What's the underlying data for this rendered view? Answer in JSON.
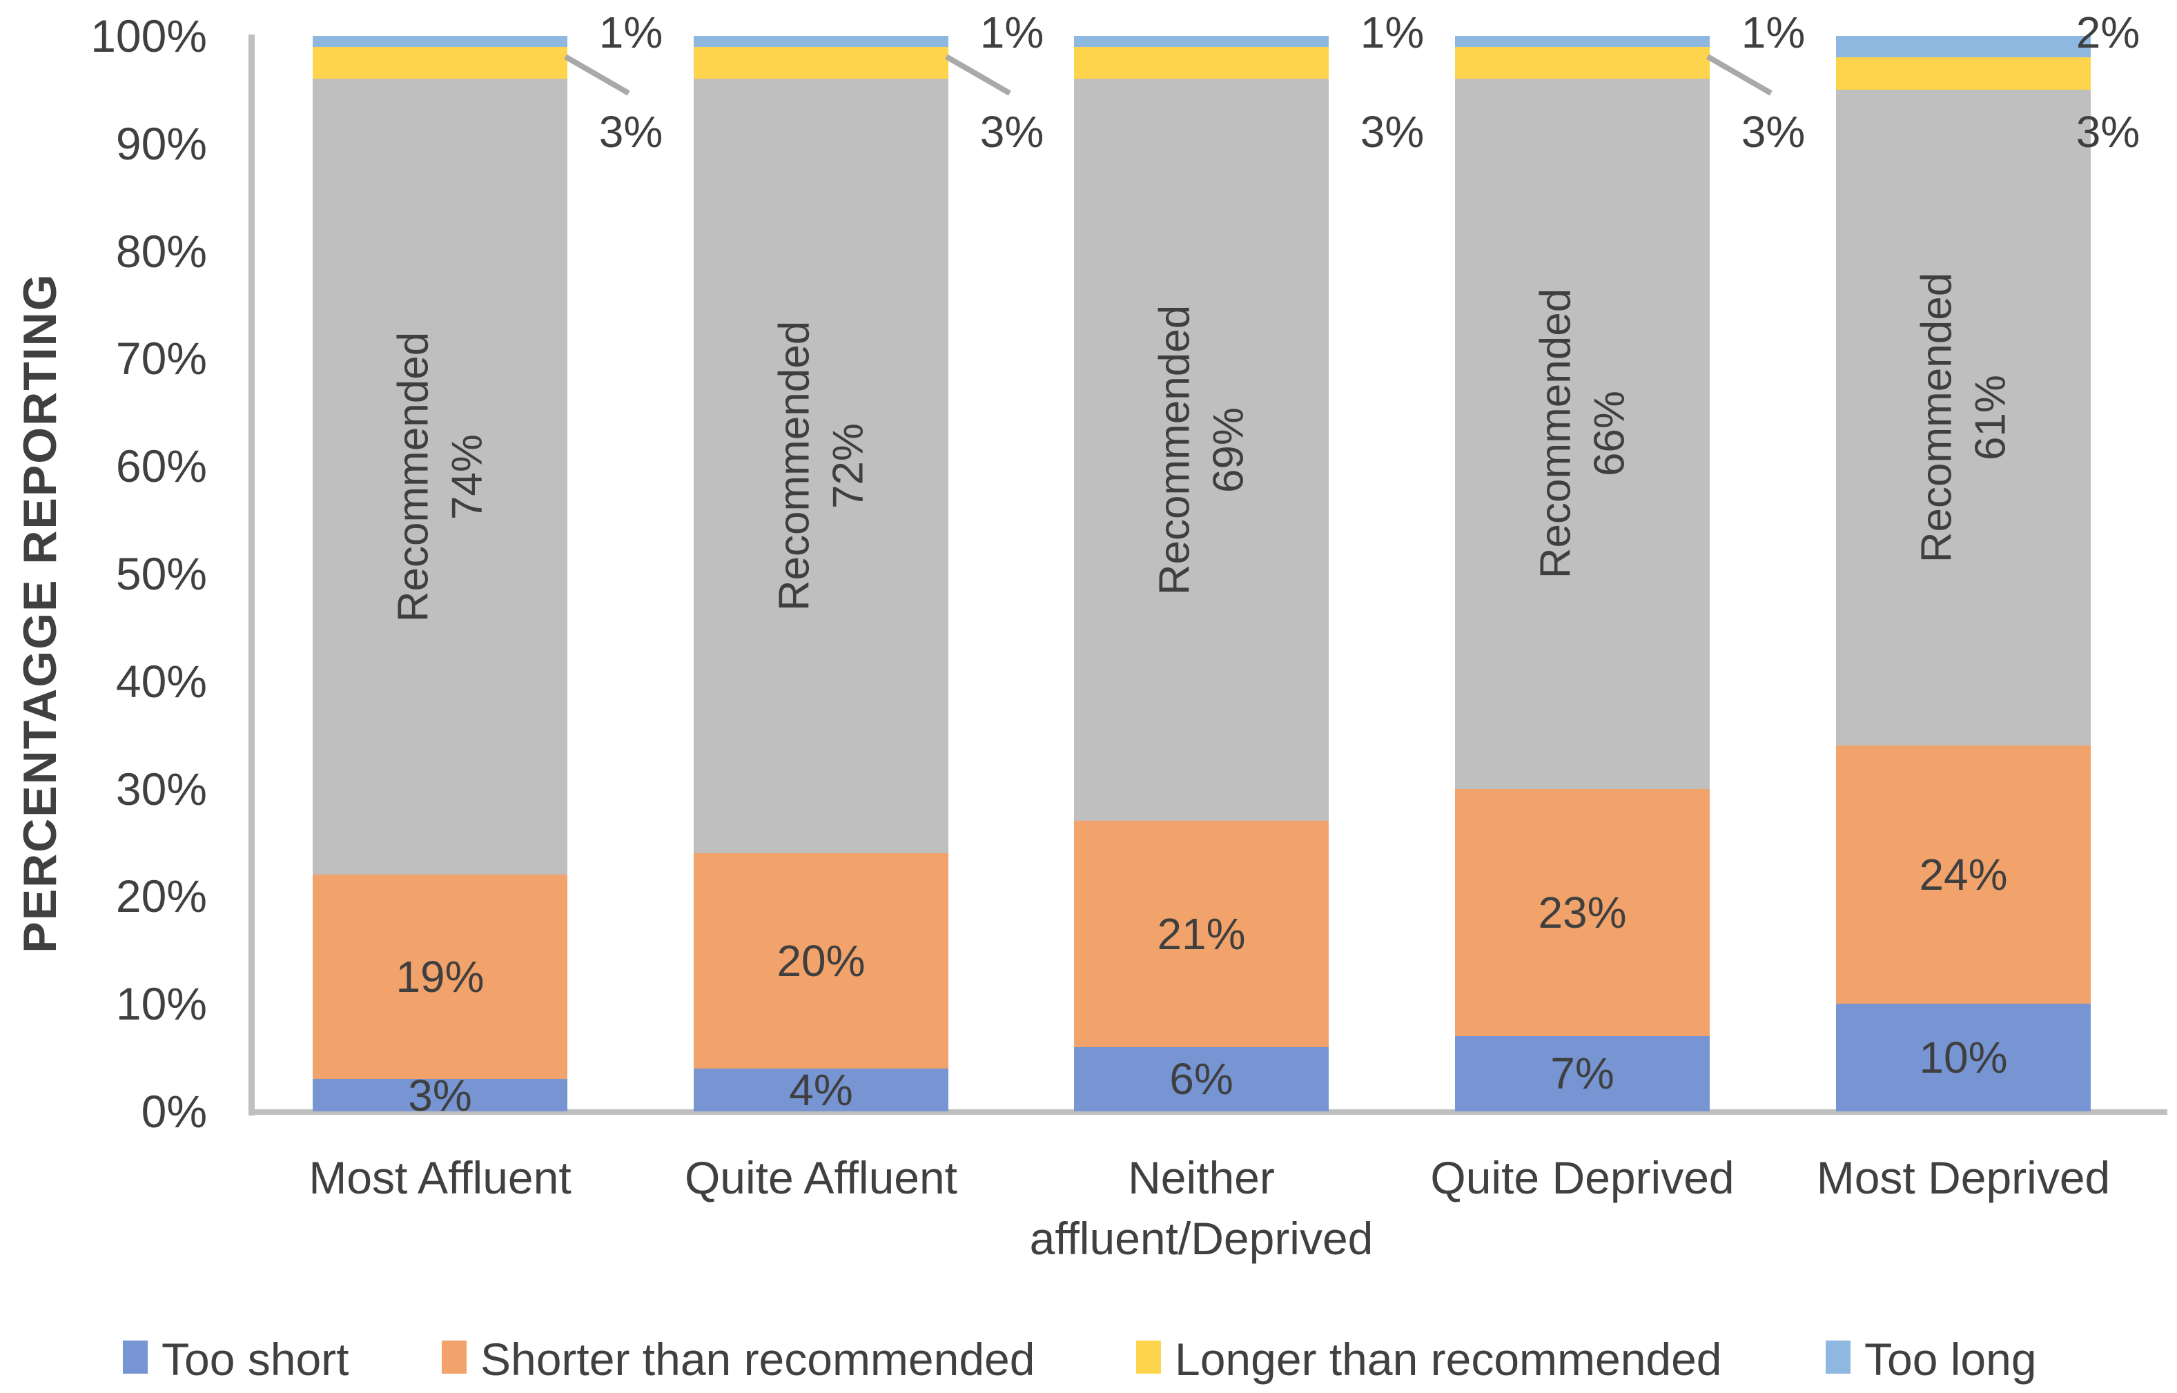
{
  "chart_data": {
    "type": "bar",
    "stacked": true,
    "title": "",
    "ylabel": "PERCENTAGGE REPORTING",
    "xlabel": "",
    "ylim": [
      0,
      100
    ],
    "yticks": [
      "0%",
      "10%",
      "20%",
      "30%",
      "40%",
      "50%",
      "60%",
      "70%",
      "80%",
      "90%",
      "100%"
    ],
    "grid": false,
    "legend_position": "bottom",
    "categories": [
      "Most Affluent",
      "Quite Affluent",
      "Neither affluent/Deprived",
      "Quite Deprived",
      "Most Deprived"
    ],
    "category_label_lines": [
      [
        "Most Affluent"
      ],
      [
        "Quite Affluent"
      ],
      [
        "Neither",
        "affluent/Deprived"
      ],
      [
        "Quite Deprived"
      ],
      [
        "Most Deprived"
      ]
    ],
    "series": [
      {
        "name": "Too short",
        "color": "#7795D2",
        "values": [
          3,
          4,
          6,
          7,
          10
        ],
        "label_style": "inside"
      },
      {
        "name": "Shorter than recommended",
        "color": "#F1A36B",
        "values": [
          19,
          20,
          21,
          23,
          24
        ],
        "label_style": "inside"
      },
      {
        "name": "Recommended",
        "color": "#BFBFBF",
        "values": [
          74,
          72,
          69,
          66,
          61
        ],
        "label_style": "inside-rotated",
        "in_legend": false
      },
      {
        "name": "Longer than recommended",
        "color": "#FFD44D",
        "values": [
          3,
          3,
          3,
          3,
          3
        ],
        "label_style": "callout"
      },
      {
        "name": "Too long",
        "color": "#8EB8E0",
        "values": [
          1,
          1,
          1,
          1,
          2
        ],
        "label_style": "callout"
      }
    ],
    "inside_rotated_word": "Recommended",
    "callouts": [
      {
        "top": "1%",
        "bottom": "3%",
        "leader": true
      },
      {
        "top": "1%",
        "bottom": "3%",
        "leader": true
      },
      {
        "top": "1%",
        "bottom": "3%",
        "leader": false
      },
      {
        "top": "1%",
        "bottom": "3%",
        "leader": true
      },
      {
        "top": "2%",
        "bottom": "3%",
        "leader": false
      }
    ],
    "legend": [
      {
        "label": "Too short",
        "color": "#7795D2"
      },
      {
        "label": "Shorter than recommended",
        "color": "#F1A36B"
      },
      {
        "label": "Longer than recommended",
        "color": "#FFD44D"
      },
      {
        "label": "Too long",
        "color": "#8EB8E0"
      }
    ]
  },
  "colors": {
    "text": "#404040",
    "axis_line": "#BFBFBF",
    "leader_line": "#A9A9A9",
    "background": "#FFFFFF"
  }
}
